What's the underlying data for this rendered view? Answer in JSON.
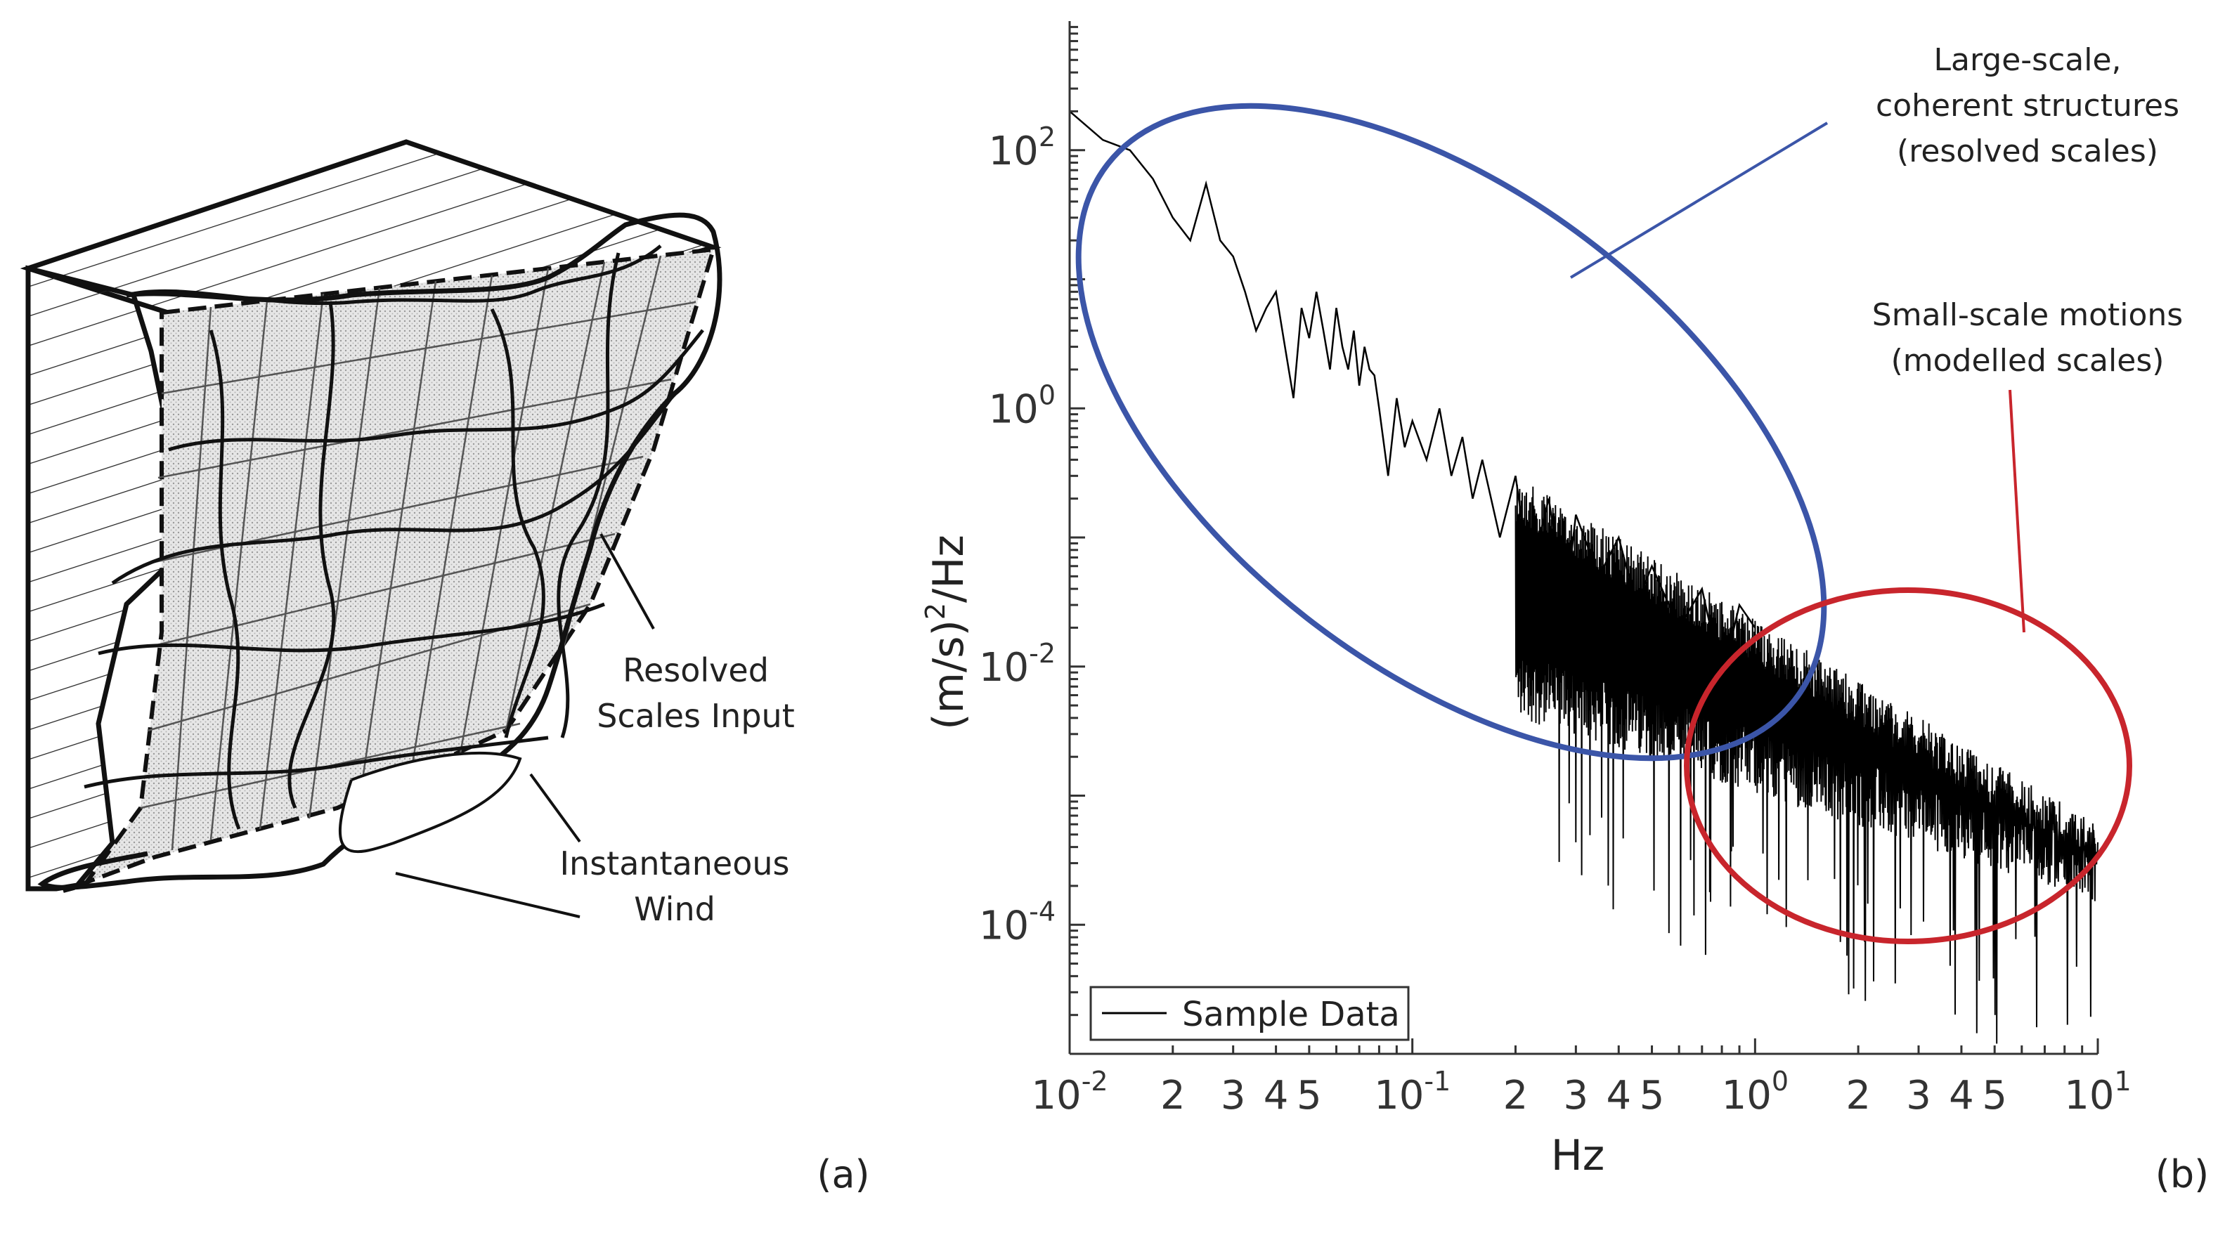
{
  "panel_a": {
    "label": "(a)",
    "annotations": {
      "resolved_line1": "Resolved",
      "resolved_line2": "Scales Input",
      "instantaneous_line1": "Instantaneous",
      "instantaneous_line2": "Wind"
    }
  },
  "panel_b": {
    "label": "(b)",
    "annotations": {
      "large_line1": "Large-scale,",
      "large_line2": "coherent structures",
      "large_line3": "(resolved scales)",
      "small_line1": "Small-scale motions",
      "small_line2": "(modelled scales)"
    },
    "colors": {
      "large": "#3b55a8",
      "small": "#c8252c",
      "data": "#000000"
    }
  },
  "chart_data": {
    "type": "line",
    "title": "",
    "xlabel": "Hz",
    "ylabel_main": "(m/s)",
    "ylabel_sup": "2",
    "ylabel_tail": "/Hz",
    "xscale": "log",
    "yscale": "log",
    "xlim": [
      0.01,
      10
    ],
    "ylim": [
      1e-05,
      1000
    ],
    "x_ticks": [
      {
        "v": 0.01,
        "base": "10",
        "exp": "-2"
      },
      {
        "v": 0.1,
        "base": "10",
        "exp": "-1"
      },
      {
        "v": 1,
        "base": "10",
        "exp": "0"
      },
      {
        "v": 10,
        "base": "10",
        "exp": "1"
      }
    ],
    "x_minor_labels": [
      {
        "v": 0.02,
        "t": "2"
      },
      {
        "v": 0.03,
        "t": "3"
      },
      {
        "v": 0.04,
        "t": "4"
      },
      {
        "v": 0.05,
        "t": "5"
      },
      {
        "v": 0.2,
        "t": "2"
      },
      {
        "v": 0.3,
        "t": "3"
      },
      {
        "v": 0.4,
        "t": "4"
      },
      {
        "v": 0.5,
        "t": "5"
      },
      {
        "v": 2,
        "t": "2"
      },
      {
        "v": 3,
        "t": "3"
      },
      {
        "v": 4,
        "t": "4"
      },
      {
        "v": 5,
        "t": "5"
      }
    ],
    "y_ticks": [
      {
        "v": 0.0001,
        "base": "10",
        "exp": "-4"
      },
      {
        "v": 0.01,
        "base": "10",
        "exp": "-2"
      },
      {
        "v": 1,
        "base": "10",
        "exp": "0"
      },
      {
        "v": 100,
        "base": "10",
        "exp": "2"
      }
    ],
    "legend": {
      "label": "Sample Data",
      "position": "bottom-left"
    },
    "series": [
      {
        "name": "Sample Data",
        "x": [
          0.01,
          0.0125,
          0.015,
          0.0175,
          0.02,
          0.0225,
          0.025,
          0.0275,
          0.03,
          0.0325,
          0.035,
          0.0375,
          0.04,
          0.0425,
          0.045,
          0.0475,
          0.05,
          0.0525,
          0.055,
          0.0575,
          0.06,
          0.0625,
          0.065,
          0.0675,
          0.07,
          0.0725,
          0.075,
          0.0775,
          0.08,
          0.085,
          0.09,
          0.095,
          0.1,
          0.11,
          0.12,
          0.13,
          0.14,
          0.15,
          0.16,
          0.18,
          0.2,
          0.22,
          0.25,
          0.28,
          0.3,
          0.35,
          0.4,
          0.45,
          0.5,
          0.6,
          0.7,
          0.8,
          0.9,
          1.0
        ],
        "y": [
          200,
          120,
          100,
          60,
          30,
          20,
          55,
          20,
          15,
          8,
          4,
          6,
          8,
          3,
          1.2,
          6,
          3.5,
          8,
          4,
          2,
          6,
          3,
          2,
          4,
          1.5,
          3,
          2,
          1.8,
          1,
          0.3,
          1.2,
          0.5,
          0.8,
          0.4,
          1.0,
          0.3,
          0.6,
          0.2,
          0.4,
          0.1,
          0.3,
          0.05,
          0.2,
          0.03,
          0.15,
          0.05,
          0.1,
          0.03,
          0.06,
          0.02,
          0.04,
          0.008,
          0.03,
          0.02
        ]
      }
    ],
    "noise_band": {
      "x_start": 0.2,
      "x_end": 10,
      "upper_start": 0.3,
      "upper_end": 0.0006,
      "lower_start": 0.004,
      "lower_end": 0.00015,
      "spikes_min": 1.2e-05
    }
  }
}
